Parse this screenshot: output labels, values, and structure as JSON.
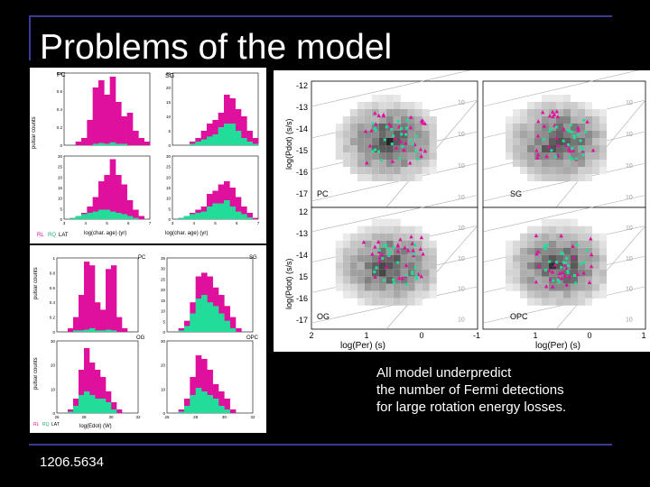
{
  "slide": {
    "title": "Problems of the model",
    "caption": [
      "All model underpredict",
      "the number of Fermi detections",
      "for large rotation energy losses."
    ],
    "reference": "1206.5634"
  },
  "colors": {
    "background": "#000000",
    "rule": "#3a3a9a",
    "magenta": "#e0109e",
    "green": "#22dd99"
  },
  "figure_age": {
    "panels": [
      {
        "label": "PC",
        "ylabel": "pulsar counts",
        "yticks_top": [
          "0.8",
          "0.6",
          "0.4",
          "0.2",
          "0"
        ]
      },
      {
        "label": "SG",
        "yticks_top": [
          "25",
          "20",
          "15",
          "10",
          "5",
          "0"
        ]
      }
    ],
    "yticks_bottom": [
      "30",
      "25",
      "20",
      "15",
      "10",
      "5",
      "0"
    ],
    "xticks": [
      "3",
      "4",
      "5",
      "6",
      "7"
    ],
    "xlabel": "log(char. age) (yr)",
    "legend": [
      "RL",
      "RQ",
      "LAT"
    ]
  },
  "figure_edot": {
    "labels": [
      "PC",
      "SG",
      "OG",
      "OPC"
    ],
    "ylabel": "pulsar counts",
    "yticks_top_left": [
      "1",
      "0.8",
      "0.6",
      "0.4",
      "0.2",
      "0"
    ],
    "yticks_top_right": [
      "35",
      "30",
      "25",
      "20",
      "15",
      "10",
      "5",
      "0"
    ],
    "yticks_bottom": [
      "30",
      "20",
      "10",
      "0"
    ],
    "xticks": [
      "26",
      "28",
      "30",
      "32"
    ],
    "xlabel": "log(Edot) (W)",
    "legend": [
      "RL",
      "RQ",
      "LAT"
    ]
  },
  "figure_ppdot": {
    "ylabel": "log(Pdot) (s/s)",
    "xlabel": "log(Per) (s)",
    "yticks": [
      "-12",
      "-13",
      "-14",
      "-15",
      "-16",
      "-17"
    ],
    "yticks_bottom": [
      "12",
      "-13",
      "-14",
      "15",
      "-16",
      "-17"
    ],
    "xticks": [
      "2",
      "1",
      "0",
      "-1"
    ],
    "xticks_right": [
      "1",
      "0",
      "1"
    ],
    "field_labels": [
      "10",
      "10",
      "10",
      "10"
    ],
    "panels": [
      "PC",
      "SG",
      "OG",
      "OPC"
    ]
  }
}
